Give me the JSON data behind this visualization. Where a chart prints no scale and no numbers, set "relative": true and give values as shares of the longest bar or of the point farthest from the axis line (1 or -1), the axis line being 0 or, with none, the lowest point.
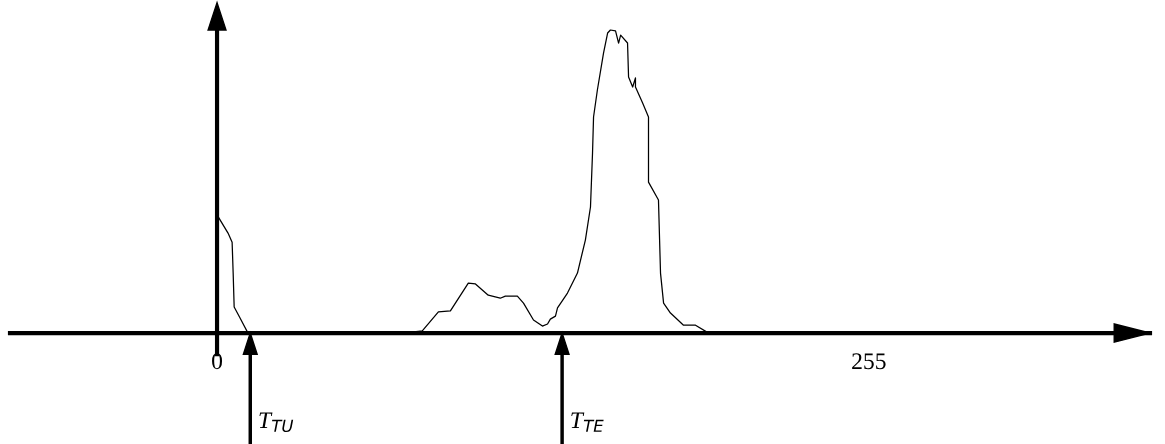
{
  "chart_data": {
    "type": "line",
    "relative": true,
    "xlim": [
      -81,
      365
    ],
    "xticks": [
      0,
      255
    ],
    "series": [
      {
        "color": "#000000",
        "x": [
          0,
          4.3,
          5.9,
          6.3,
          6.7,
          9.0,
          12.1
        ],
        "values": [
          0.39,
          0.33,
          0.3,
          0.2,
          0.086,
          0.05,
          0
        ]
      },
      {
        "color": "#000000",
        "x": [
          72.9,
          80.3,
          86.6,
          91.3,
          98.3,
          101.1,
          106.1,
          110.8,
          112.8,
          117.5,
          119.9,
          123.8,
          127.3,
          129.3,
          130.4,
          132.4,
          133.2,
          137.1,
          141.0,
          144.1,
          146.1,
          146.9,
          147.3,
          148.8,
          151.2,
          152.8,
          153.9,
          155.9,
          157.1,
          157.9,
          160.6,
          161.0,
          162.6,
          163.7,
          163.7,
          166.5,
          168.8,
          168.8,
          172.7,
          173.5,
          174.7,
          177.4,
          182.5,
          187.2,
          192.3
        ],
        "values": [
          0.0,
          0.007,
          0.07,
          0.073,
          0.165,
          0.162,
          0.125,
          0.115,
          0.122,
          0.122,
          0.099,
          0.043,
          0.023,
          0.03,
          0.046,
          0.056,
          0.083,
          0.132,
          0.198,
          0.307,
          0.416,
          0.594,
          0.713,
          0.802,
          0.924,
          0.99,
          1.0,
          0.997,
          0.957,
          0.983,
          0.957,
          0.845,
          0.812,
          0.842,
          0.812,
          0.759,
          0.713,
          0.498,
          0.439,
          0.198,
          0.099,
          0.066,
          0.026,
          0.026,
          0.0
        ]
      }
    ],
    "ref_lines": [
      {
        "axis": "x",
        "value": 13,
        "label": "T$_{TU}$"
      },
      {
        "axis": "x",
        "value": 135,
        "label": "T$_{TE}$"
      }
    ],
    "legend": false
  }
}
